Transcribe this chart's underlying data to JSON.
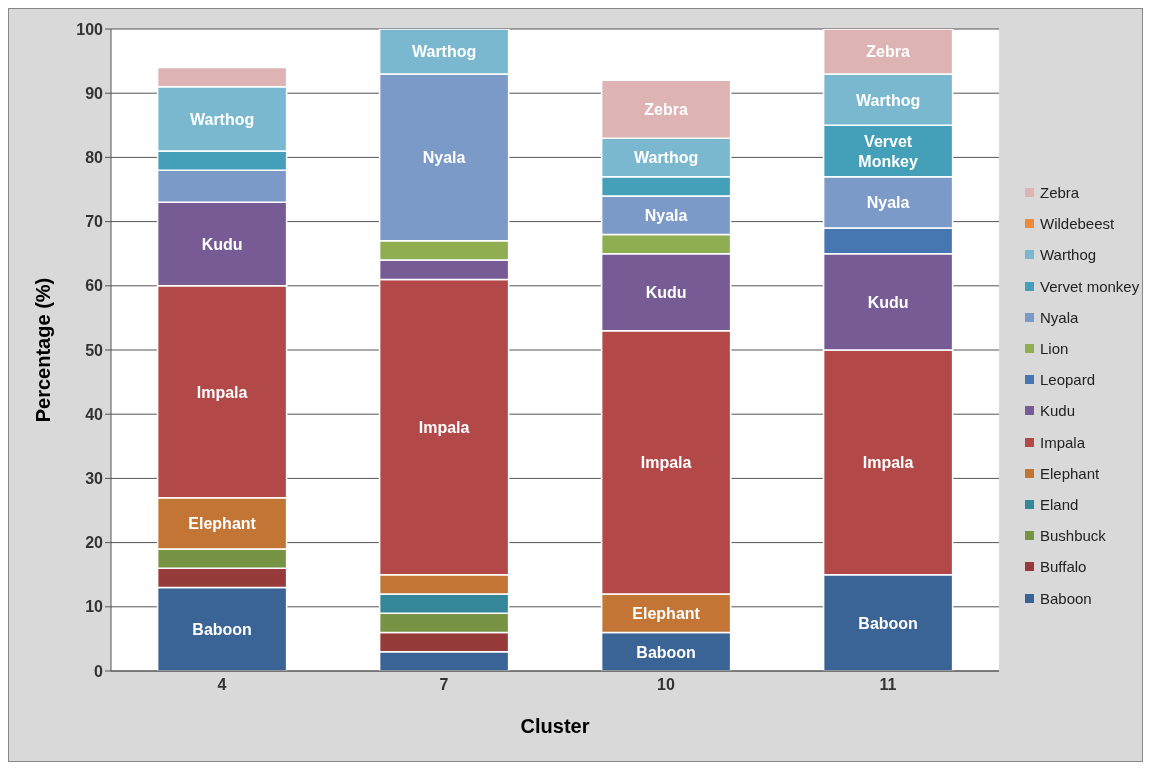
{
  "chart_data": {
    "type": "bar",
    "stacked": true,
    "xlabel": "Cluster",
    "ylabel": "Percentage (%)",
    "categories": [
      "4",
      "7",
      "10",
      "11"
    ],
    "ylim": [
      0,
      100
    ],
    "yticks": [
      0,
      10,
      20,
      30,
      40,
      50,
      60,
      70,
      80,
      90,
      100
    ],
    "grid": "y",
    "legend": "right",
    "series": [
      {
        "name": "Baboon",
        "color": "#3a6496",
        "values": [
          13,
          3,
          6,
          15
        ],
        "value_labels": [
          "Baboon",
          null,
          "Baboon",
          "Baboon"
        ]
      },
      {
        "name": "Buffalo",
        "color": "#963a3a",
        "values": [
          3,
          3,
          null,
          null
        ]
      },
      {
        "name": "Bushbuck",
        "color": "#779444",
        "values": [
          3,
          3,
          null,
          null
        ]
      },
      {
        "name": "Eland",
        "color": "#358799",
        "values": [
          null,
          3,
          null,
          null
        ]
      },
      {
        "name": "Elephant",
        "color": "#c27535",
        "values": [
          8,
          3,
          6,
          null
        ],
        "value_labels": [
          "Elephant",
          null,
          "Elephant",
          null
        ]
      },
      {
        "name": "Impala",
        "color": "#b34848",
        "values": [
          33,
          46,
          41,
          35
        ],
        "value_labels": [
          "Impala",
          "Impala",
          "Impala",
          "Impala"
        ]
      },
      {
        "name": "Kudu",
        "color": "#765b94",
        "values": [
          13,
          3,
          12,
          15
        ],
        "value_labels": [
          "Kudu",
          null,
          "Kudu",
          "Kudu"
        ]
      },
      {
        "name": "Leopard",
        "color": "#4677b0",
        "values": [
          null,
          null,
          null,
          4
        ]
      },
      {
        "name": "Lion",
        "color": "#8fae52",
        "values": [
          null,
          3,
          3,
          null
        ]
      },
      {
        "name": "Nyala",
        "color": "#7b9ac7",
        "values": [
          5,
          26,
          6,
          8
        ],
        "value_labels": [
          null,
          "Nyala",
          "Nyala",
          "Nyala"
        ]
      },
      {
        "name": "Vervet monkey",
        "color": "#44a0b8",
        "values": [
          3,
          null,
          3,
          8
        ],
        "value_labels": [
          null,
          null,
          null,
          "Vervet Monkey"
        ]
      },
      {
        "name": "Warthog",
        "color": "#7ab8cf",
        "values": [
          10,
          7,
          6,
          8
        ],
        "value_labels": [
          "Warthog",
          "Warthog",
          "Warthog",
          "Warthog"
        ]
      },
      {
        "name": "Wildebeest",
        "color": "#ef8a3a",
        "values": [
          null,
          null,
          null,
          null
        ]
      },
      {
        "name": "Zebra",
        "color": "#ddb3b3",
        "values": [
          3,
          null,
          9,
          7
        ],
        "value_labels": [
          null,
          null,
          "Zebra",
          "Zebra"
        ]
      }
    ]
  }
}
